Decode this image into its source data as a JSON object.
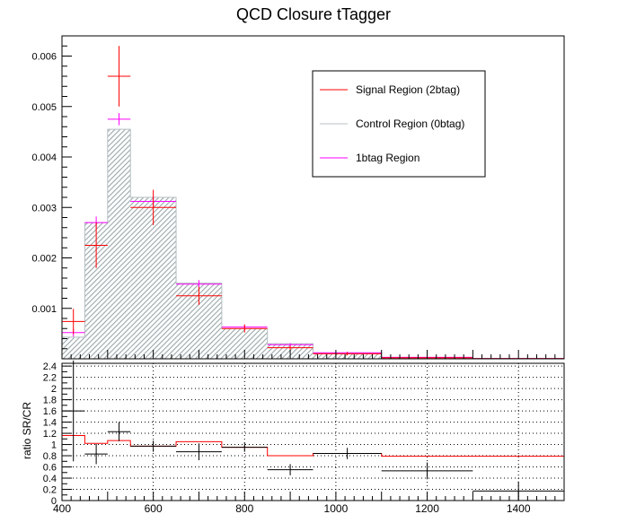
{
  "chart_data": [
    {
      "type": "histogram",
      "title": "QCD Closure tTagger",
      "xlabel": "",
      "ylabel": "",
      "xlim": [
        400,
        1500
      ],
      "ylim": [
        0,
        0.0064
      ],
      "yticks": [
        0.001,
        0.002,
        0.003,
        0.004,
        0.005,
        0.006
      ],
      "yticklabels": [
        "0.001",
        "0.002",
        "0.003",
        "0.004",
        "0.005",
        "0.006"
      ],
      "bin_edges": [
        400,
        450,
        500,
        550,
        650,
        750,
        850,
        950,
        1100,
        1300,
        1500
      ],
      "legend": {
        "position": "top-right",
        "entries": [
          "Signal Region (2btag)",
          "Control Region (0btag)",
          "1btag Region"
        ]
      },
      "series": [
        {
          "name": "Control Region (0btag)",
          "style": "filled-histogram",
          "color": "#a0aeb2",
          "values": [
            0.00043,
            0.0027,
            0.00455,
            0.0032,
            0.0015,
            0.0006,
            0.0003,
            0.00011,
            3e-05,
            1e-05
          ]
        },
        {
          "name": "1btag Region",
          "style": "points",
          "color": "#ff00ff",
          "values": [
            0.00052,
            0.0027,
            0.00475,
            0.00312,
            0.00148,
            0.00063,
            0.00028,
            0.00012,
            3e-05,
            5e-06
          ],
          "errors": [
            8e-05,
            0.00012,
            0.00012,
            0.0001,
            8e-05,
            5e-05,
            3e-05,
            2e-05,
            1e-05,
            5e-06
          ]
        },
        {
          "name": "Signal Region (2btag)",
          "style": "points",
          "color": "#ff0000",
          "values": [
            0.00074,
            0.00225,
            0.0056,
            0.003,
            0.00125,
            0.0006,
            0.00022,
            0.0001,
            2e-05,
            5e-06
          ],
          "errors": [
            0.00025,
            0.00045,
            0.0006,
            0.00035,
            0.00018,
            8e-05,
            4e-05,
            3e-05,
            1e-05,
            5e-06
          ]
        }
      ]
    },
    {
      "type": "ratio",
      "xlabel": "",
      "ylabel": "ratio SR/CR",
      "xlim": [
        400,
        1500
      ],
      "ylim": [
        0,
        2.45
      ],
      "xticks": [
        400,
        600,
        800,
        1000,
        1200,
        1400
      ],
      "xticklabels": [
        "400",
        "600",
        "800",
        "1000",
        "1200",
        "1400"
      ],
      "yticks": [
        0,
        0.2,
        0.4,
        0.6,
        0.8,
        1,
        1.2,
        1.4,
        1.6,
        1.8,
        2,
        2.2,
        2.4
      ],
      "yticklabels": [
        "0",
        "0.2",
        "0.4",
        "0.6",
        "0.8",
        "1",
        "1.2",
        "1.4",
        "1.6",
        "1.8",
        "2",
        "2.2",
        "2.4"
      ],
      "grid": true,
      "bin_edges": [
        400,
        450,
        500,
        550,
        650,
        750,
        850,
        950,
        1100,
        1300,
        1500
      ],
      "series": [
        {
          "name": "",
          "style": "histogram-line",
          "color": "#ff0000",
          "values": [
            1.16,
            1.02,
            1.07,
            0.97,
            1.05,
            0.95,
            0.8,
            0.84,
            0.79,
            0.79
          ]
        },
        {
          "name": "",
          "style": "points",
          "color": "#000000",
          "values": [
            1.6,
            0.83,
            1.23,
            0.97,
            0.87,
            0.95,
            0.55,
            0.84,
            0.53,
            0.17
          ],
          "errors": [
            0.9,
            0.18,
            0.17,
            0.1,
            0.15,
            0.08,
            0.1,
            0.1,
            0.15,
            0.17
          ]
        }
      ]
    }
  ]
}
